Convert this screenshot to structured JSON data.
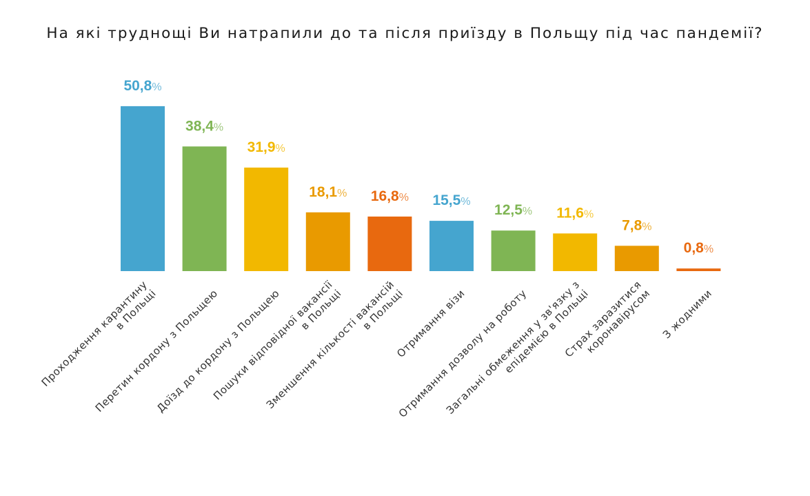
{
  "chart_data": {
    "type": "bar",
    "title": "На які труднощі Ви натрапили до та після приїзду в Польщу під час пандемії?",
    "categories": [
      [
        "Проходження карантину",
        "в Польщі"
      ],
      [
        "Перетин кордону з Польщею"
      ],
      [
        "Доїзд до кордону з Польщею"
      ],
      [
        "Пошуки відповідної вакансії",
        "в Польщі"
      ],
      [
        "Зменшення кількості вакансій",
        "в Польщі"
      ],
      [
        "Отримання візи"
      ],
      [
        "Отримання дозволу на роботу"
      ],
      [
        "Загальні обмеження у зв'язку з",
        "епідемією в Польщі"
      ],
      [
        "Страх заразитися",
        "коронавірусом"
      ],
      [
        "З жодними"
      ]
    ],
    "values": [
      50.8,
      38.4,
      31.9,
      18.1,
      16.8,
      15.5,
      12.5,
      11.6,
      7.8,
      0.8
    ],
    "value_labels": [
      "50,8",
      "38,4",
      "31,9",
      "18,1",
      "16,8",
      "15,5",
      "12,5",
      "11,6",
      "7,8",
      "0,8"
    ],
    "percent_sign": "%",
    "colors": [
      "#45a5cf",
      "#7fb554",
      "#f2b800",
      "#e99a00",
      "#e8690f",
      "#45a5cf",
      "#7fb554",
      "#f2b800",
      "#e99a00",
      "#e8690f"
    ],
    "label_colors": [
      "#45a5cf",
      "#7fb554",
      "#f2b800",
      "#e99a00",
      "#e8690f",
      "#45a5cf",
      "#7fb554",
      "#f2b800",
      "#e99a00",
      "#e8690f"
    ],
    "ylim": [
      0,
      51
    ],
    "grid": false,
    "legend": "none"
  }
}
